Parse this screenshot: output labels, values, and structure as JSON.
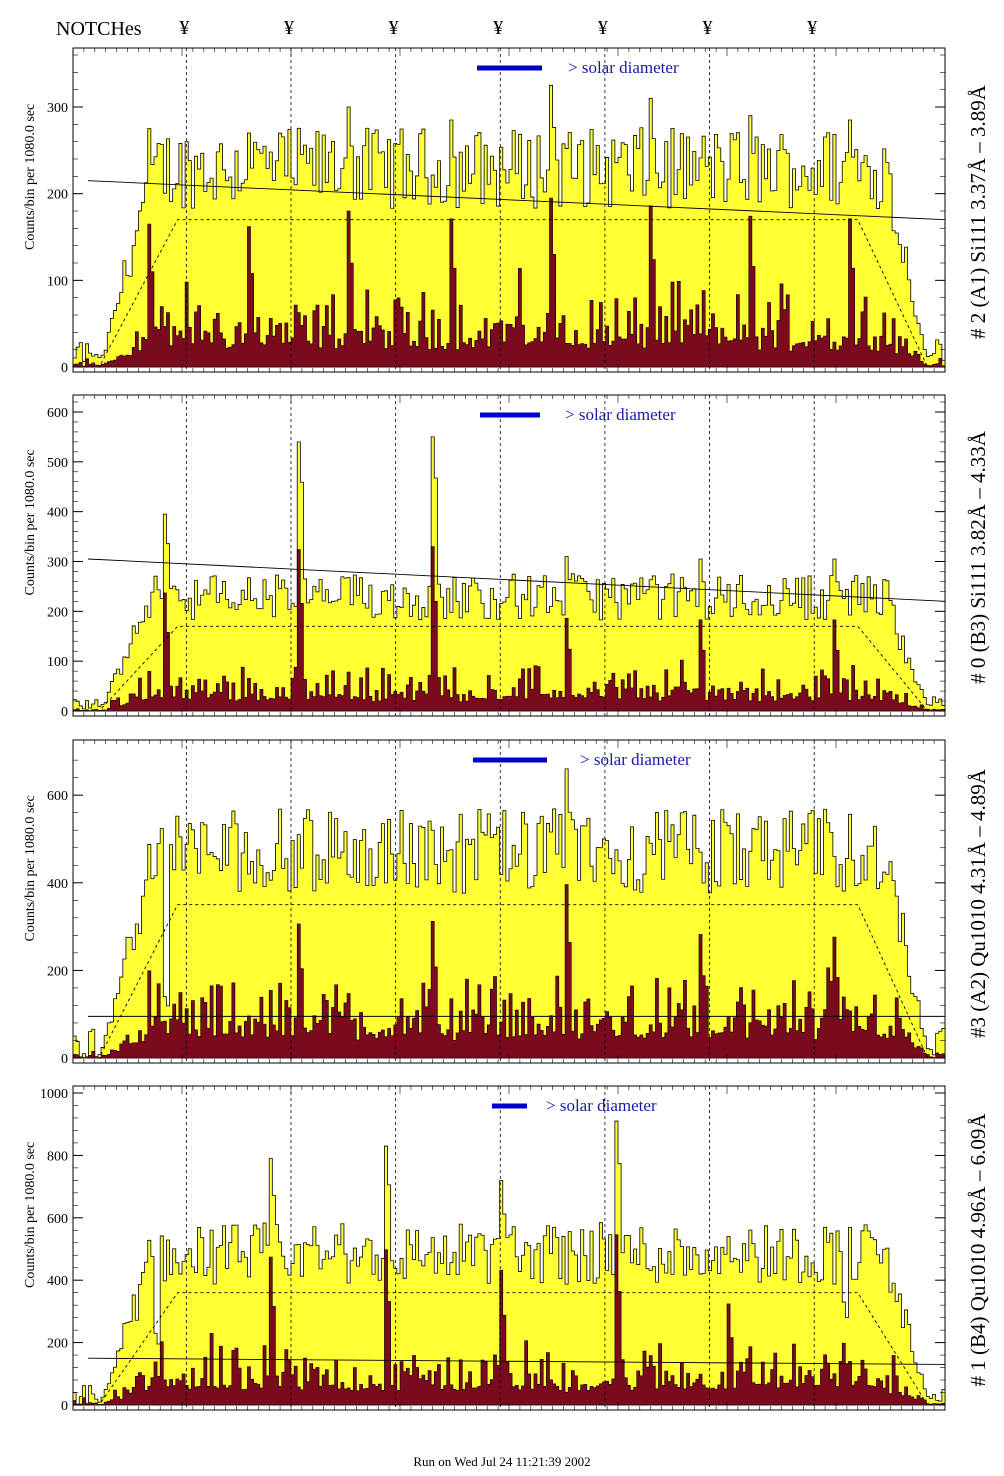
{
  "header": {
    "notches_label": "NOTCHes",
    "notch_marker": "¥"
  },
  "colors": {
    "fill_total": "#ffff33",
    "fill_line": "#7a0a1e",
    "axis": "#000000",
    "annotation": "#1a1aaa"
  },
  "footer": "Run on Wed Jul 24 11:21:39 2002",
  "chart_data": [
    {
      "type": "area",
      "title": "# 2 (A1) Si111  3.37Å – 3.89Å",
      "ylabel": "Counts/bin per   1080.0 sec",
      "ylim": [
        0,
        360
      ],
      "yticks": [
        0,
        100,
        200,
        300
      ],
      "annotation": "> solar diameter",
      "baseline": [
        215,
        170
      ],
      "envelope": 170,
      "total_peaks": [
        275,
        270,
        300,
        285,
        325,
        310,
        290,
        285
      ],
      "notch_positions": [
        0.13,
        0.25,
        0.37,
        0.49,
        0.61,
        0.73,
        0.85
      ]
    },
    {
      "type": "area",
      "title": "# 0 (B3) Si111  3.82Å – 4.33Å",
      "ylabel": "Counts/bin per   1080.0 sec",
      "ylim": [
        0,
        620
      ],
      "yticks": [
        0,
        100,
        200,
        300,
        400,
        500,
        600
      ],
      "annotation": "> solar diameter",
      "baseline": [
        305,
        220
      ],
      "envelope": 170,
      "total_peaks": [
        395,
        540,
        550,
        310,
        305,
        305
      ],
      "notch_positions": [
        0.13,
        0.25,
        0.37,
        0.49,
        0.61,
        0.73,
        0.85
      ]
    },
    {
      "type": "area",
      "title": "#3 (A2) Qu1010  4.31Å – 4.89Å",
      "ylabel": "Counts/bin per   1080.0 sec",
      "ylim": [
        0,
        710
      ],
      "yticks": [
        0,
        200,
        400,
        600
      ],
      "annotation": "> solar diameter",
      "baseline": [
        95,
        95
      ],
      "envelope": 350,
      "total_peaks": [
        140,
        510,
        520,
        660,
        470,
        460
      ],
      "notch_positions": [
        0.13,
        0.25,
        0.37,
        0.49,
        0.61,
        0.73,
        0.85
      ]
    },
    {
      "type": "area",
      "title": "# 1 (B4) Qu1010 4.96Å – 6.09Å",
      "ylabel": "Counts/bin per   1080.0 sec",
      "ylim": [
        0,
        1000
      ],
      "yticks": [
        0,
        200,
        400,
        600,
        800,
        1000
      ],
      "annotation": "> solar diameter",
      "baseline": [
        150,
        130
      ],
      "envelope": 360,
      "total_peaks": [
        230,
        790,
        830,
        720,
        910,
        540,
        330
      ],
      "notch_positions": [
        0.13,
        0.25,
        0.37,
        0.49,
        0.61,
        0.73,
        0.85
      ]
    }
  ]
}
